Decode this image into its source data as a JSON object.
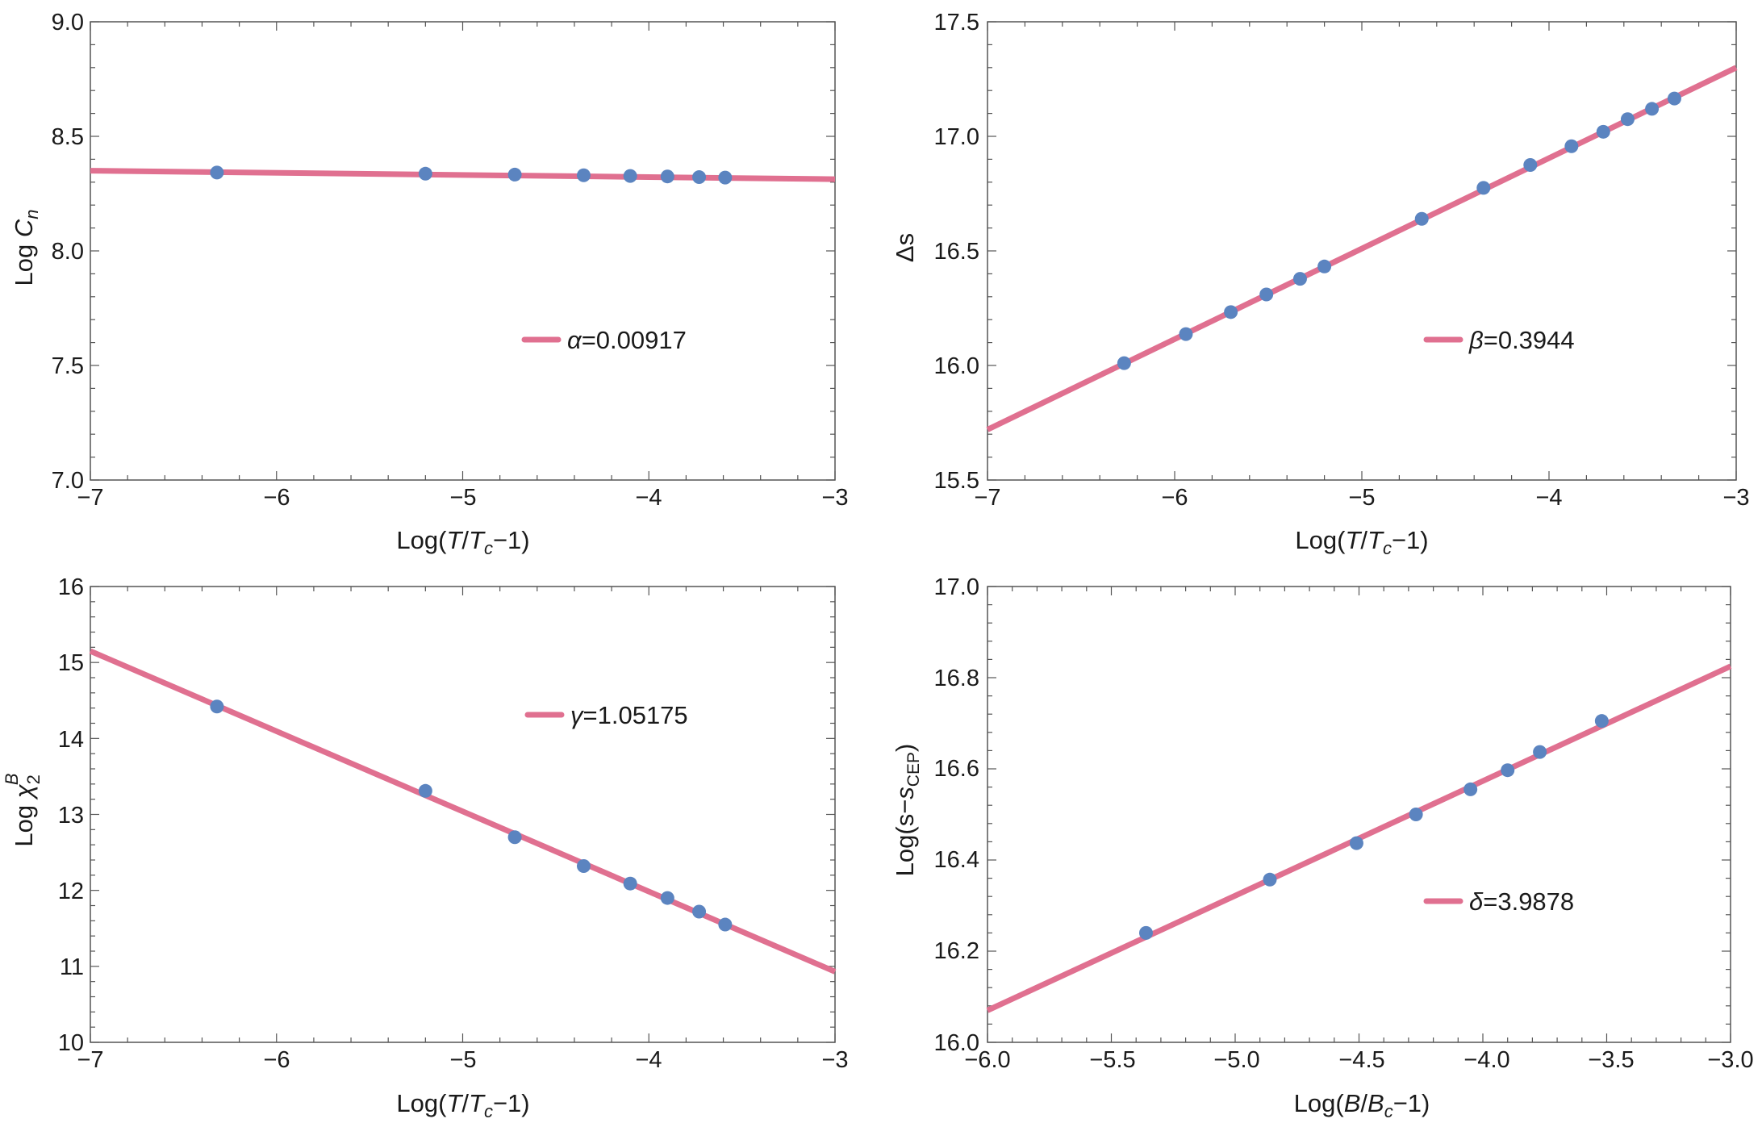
{
  "colors": {
    "fit_line": "#e07090",
    "point": "#5b84c0",
    "frame": "#555555",
    "text": "#1a1a1a"
  },
  "chart_data": [
    {
      "type": "scatter",
      "name": "panel-heat-capacity",
      "xlim": [
        -7,
        -3
      ],
      "ylim": [
        7.0,
        9.0
      ],
      "x_ticks": [
        -7,
        -6,
        -5,
        -4,
        -3
      ],
      "x_tick_labels": [
        "−7",
        "−6",
        "−5",
        "−4",
        "−3"
      ],
      "y_ticks": [
        7.0,
        7.5,
        8.0,
        8.5,
        9.0
      ],
      "y_tick_labels": [
        "7.0",
        "7.5",
        "8.0",
        "8.5",
        "9.0"
      ],
      "xlabel": {
        "pre": "Log(",
        "v1": "T",
        "mid": "/",
        "v2": "T",
        "sub": "c",
        "post": "−1)"
      },
      "ylabel": {
        "pre": "Log ",
        "var": "C",
        "sub": "n"
      },
      "fit": {
        "x": [
          -7,
          -3
        ],
        "y": [
          8.35,
          8.313
        ]
      },
      "points": {
        "x": [
          -6.32,
          -5.2,
          -4.72,
          -4.35,
          -4.1,
          -3.9,
          -3.73,
          -3.59
        ],
        "y": [
          8.342,
          8.337,
          8.333,
          8.33,
          8.327,
          8.325,
          8.322,
          8.32
        ]
      },
      "legend": {
        "symbol": "α",
        "value": "=0.00917"
      }
    },
    {
      "type": "scatter",
      "name": "panel-entropy-jump",
      "xlim": [
        -7,
        -3
      ],
      "ylim": [
        15.5,
        17.5
      ],
      "x_ticks": [
        -7,
        -6,
        -5,
        -4,
        -3
      ],
      "x_tick_labels": [
        "−7",
        "−6",
        "−5",
        "−4",
        "−3"
      ],
      "y_ticks": [
        15.5,
        16.0,
        16.5,
        17.0,
        17.5
      ],
      "y_tick_labels": [
        "15.5",
        "16.0",
        "16.5",
        "17.0",
        "17.5"
      ],
      "xlabel": {
        "pre": "Log(",
        "v1": "T",
        "mid": "/",
        "v2": "T",
        "sub": "c",
        "post": "−1)"
      },
      "ylabel": {
        "pre": "",
        "var": "Δs",
        "sub": ""
      },
      "fit": {
        "x": [
          -7,
          -3
        ],
        "y": [
          15.72,
          17.3
        ]
      },
      "points": {
        "x": [
          -6.27,
          -5.94,
          -5.7,
          -5.51,
          -5.33,
          -5.2,
          -4.68,
          -4.35,
          -4.1,
          -3.88,
          -3.71,
          -3.58,
          -3.45,
          -3.33
        ],
        "y": [
          16.01,
          16.137,
          16.233,
          16.31,
          16.378,
          16.432,
          16.64,
          16.775,
          16.875,
          16.957,
          17.02,
          17.075,
          17.12,
          17.165
        ]
      },
      "legend": {
        "symbol": "β",
        "value": "=0.3944"
      }
    },
    {
      "type": "scatter",
      "name": "panel-susceptibility",
      "xlim": [
        -7,
        -3
      ],
      "ylim": [
        10,
        16
      ],
      "x_ticks": [
        -7,
        -6,
        -5,
        -4,
        -3
      ],
      "x_tick_labels": [
        "−7",
        "−6",
        "−5",
        "−4",
        "−3"
      ],
      "y_ticks": [
        10,
        11,
        12,
        13,
        14,
        15,
        16
      ],
      "y_tick_labels": [
        "10",
        "11",
        "12",
        "13",
        "14",
        "15",
        "16"
      ],
      "xlabel": {
        "pre": "Log(",
        "v1": "T",
        "mid": "/",
        "v2": "T",
        "sub": "c",
        "post": "−1)"
      },
      "ylabel": {
        "pre": "Log ",
        "var": "χ",
        "sub": "2",
        "sup": "B"
      },
      "fit": {
        "x": [
          -7,
          -3
        ],
        "y": [
          15.15,
          10.93
        ]
      },
      "points": {
        "x": [
          -6.32,
          -5.2,
          -4.72,
          -4.35,
          -4.1,
          -3.9,
          -3.73,
          -3.59
        ],
        "y": [
          14.42,
          13.31,
          12.7,
          12.32,
          12.09,
          11.9,
          11.72,
          11.55
        ]
      },
      "legend": {
        "symbol": "γ",
        "value": "=1.05175"
      }
    },
    {
      "type": "scatter",
      "name": "panel-critical-isotherm",
      "xlim": [
        -6.0,
        -3.0
      ],
      "ylim": [
        16.0,
        17.0
      ],
      "x_ticks": [
        -6.0,
        -5.5,
        -5.0,
        -4.5,
        -4.0,
        -3.5,
        -3.0
      ],
      "x_tick_labels": [
        "−6.0",
        "−5.5",
        "−5.0",
        "−4.5",
        "−4.0",
        "−3.5",
        "−3.0"
      ],
      "y_ticks": [
        16.0,
        16.2,
        16.4,
        16.6,
        16.8,
        17.0
      ],
      "y_tick_labels": [
        "16.0",
        "16.2",
        "16.4",
        "16.6",
        "16.8",
        "17.0"
      ],
      "xlabel": {
        "pre": "Log(",
        "v1": "B",
        "mid": "/",
        "v2": "B",
        "sub": "c",
        "post": "−1)"
      },
      "ylabel": {
        "pre": "Log(s−",
        "var": "s",
        "sub": "CEP",
        "post": ")"
      },
      "fit": {
        "x": [
          -6.0,
          -3.0
        ],
        "y": [
          16.07,
          16.825
        ]
      },
      "points": {
        "x": [
          -5.36,
          -4.86,
          -4.51,
          -4.27,
          -4.05,
          -3.9,
          -3.77,
          -3.52
        ],
        "y": [
          16.24,
          16.357,
          16.437,
          16.5,
          16.555,
          16.597,
          16.637,
          16.705
        ]
      },
      "legend": {
        "symbol": "δ",
        "value": "=3.9878"
      }
    }
  ]
}
